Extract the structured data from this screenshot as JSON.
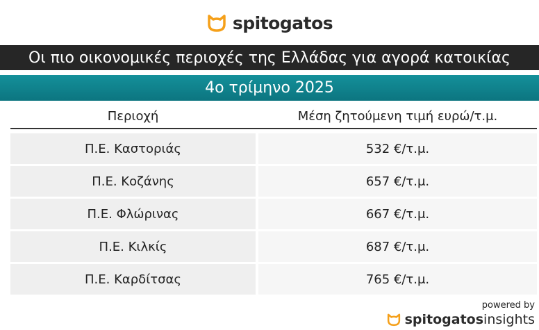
{
  "logo": {
    "brand": "spitogatos"
  },
  "header": {
    "title": "Οι πιο οικονομικές περιοχές της Ελλάδας για αγορά κατοικίας",
    "subtitle": "4ο τρίμηνο 2025"
  },
  "table": {
    "columns": [
      "Περιοχή",
      "Μέση ζητούμενη τιμή ευρώ/τ.μ."
    ],
    "rows": [
      [
        "Π.Ε. Καστοριάς",
        "532 €/τ.μ."
      ],
      [
        "Π.Ε. Κοζάνης",
        "657 €/τ.μ."
      ],
      [
        "Π.Ε. Φλώρινας",
        "667 €/τ.μ."
      ],
      [
        "Π.Ε. Κιλκίς",
        "687 €/τ.μ."
      ],
      [
        "Π.Ε. Καρδίτσας",
        "765 €/τ.μ."
      ]
    ]
  },
  "footer": {
    "powered_by": "powered by",
    "brand": "spitogatos",
    "product": "insights"
  }
}
